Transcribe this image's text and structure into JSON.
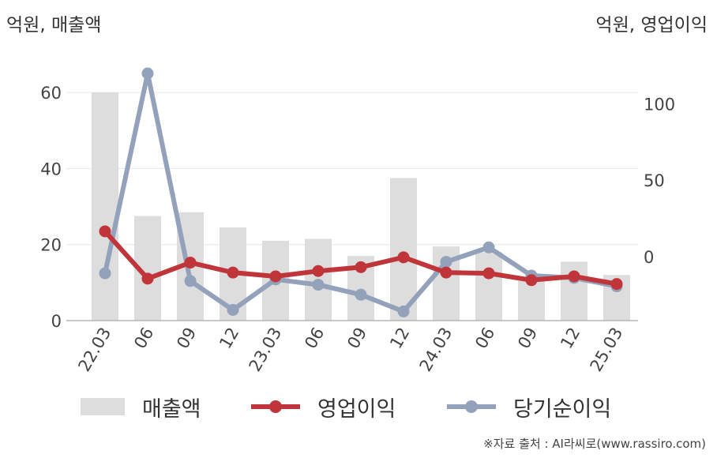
{
  "units": {
    "left": "억원, 매출액",
    "right": "억원, 영업이익"
  },
  "legend": [
    {
      "label": "매출액",
      "kind": "bar"
    },
    {
      "label": "영업이익",
      "kind": "line"
    },
    {
      "label": "당기순이익",
      "kind": "line"
    }
  ],
  "source": "※자료 출처 : AI라씨로(www.rassiro.com)",
  "colors": {
    "revenue": "#dddddd",
    "operating": "#c0353a",
    "net": "#94a1bb"
  },
  "chart_data": {
    "type": "bar",
    "categories": [
      "22.03",
      "06",
      "09",
      "12",
      "23.03",
      "06",
      "09",
      "12",
      "24.03",
      "06",
      "09",
      "12",
      "25.03"
    ],
    "y_left": {
      "ticks": [
        0,
        20,
        40,
        60
      ],
      "lim": [
        0,
        65
      ]
    },
    "y_right": {
      "ticks": [
        0,
        50,
        100
      ],
      "lim": [
        -42,
        120
      ]
    },
    "series": [
      {
        "name": "매출액",
        "type": "bar",
        "axis": "left",
        "values": [
          60,
          27.5,
          28.5,
          24.5,
          21,
          21.5,
          17,
          37.5,
          19.5,
          18,
          10.5,
          15.5,
          12
        ]
      },
      {
        "name": "영업이익",
        "type": "line",
        "axis": "right",
        "values": [
          16.5,
          -14.5,
          -4,
          -10.5,
          -13,
          -9.5,
          -7,
          -0.5,
          -10.5,
          -11,
          -15.5,
          -13,
          -18
        ]
      },
      {
        "name": "당기순이익",
        "type": "line",
        "axis": "right",
        "values": [
          -11,
          120,
          -16,
          -35,
          -15,
          -18.5,
          -25,
          -36,
          -3.5,
          6,
          -12.5,
          -14,
          -19.5
        ]
      }
    ],
    "grid": true,
    "legend_position": "bottom"
  }
}
